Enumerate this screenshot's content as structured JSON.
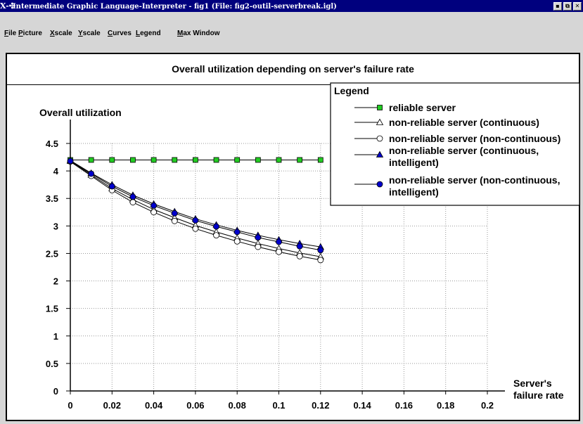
{
  "window": {
    "logo": "X-✣",
    "title": "Intermediate Graphic Language-Interpreter - fig1 (File: fig2-outil-serverbreak.igl)",
    "buttons": [
      "▪",
      "⧉",
      "✕"
    ]
  },
  "menu": [
    "File",
    "Picture",
    "Xscale",
    "Yscale",
    "Curves",
    "Legend",
    "Max Window"
  ],
  "chart_data": {
    "type": "line",
    "title": "Overall utilization depending on server's failure rate",
    "ylabel": "Overall utilization",
    "xlabel": [
      "Server's",
      "failure rate"
    ],
    "xlim": [
      0,
      0.2
    ],
    "ylim": [
      0,
      4.5
    ],
    "xticks": [
      "0",
      "0.02",
      "0.04",
      "0.06",
      "0.08",
      "0.1",
      "0.12",
      "0.14",
      "0.16",
      "0.18",
      "0.2"
    ],
    "yticks": [
      "0",
      "0.5",
      "1",
      "1.5",
      "2",
      "2.5",
      "3",
      "3.5",
      "4",
      "4.5"
    ],
    "grid": true,
    "legend_title": "Legend",
    "legend_position": "top-right",
    "x": [
      0,
      0.01,
      0.02,
      0.03,
      0.04,
      0.05,
      0.06,
      0.07,
      0.08,
      0.09,
      0.1,
      0.11,
      0.12
    ],
    "series": [
      {
        "name": "reliable server",
        "marker": "square",
        "color": "#22cc22",
        "values": [
          4.2,
          4.2,
          4.2,
          4.2,
          4.2,
          4.2,
          4.2,
          4.2,
          4.2,
          4.2,
          4.2,
          4.2,
          4.2
        ]
      },
      {
        "name": "non-reliable server (continuous)",
        "marker": "triangle-open",
        "color": "#ffffff",
        "values": [
          4.18,
          3.93,
          3.68,
          3.48,
          3.3,
          3.15,
          3.01,
          2.89,
          2.78,
          2.68,
          2.59,
          2.51,
          2.44
        ]
      },
      {
        "name": "non-reliable server (non-continuous)",
        "marker": "circle-open",
        "color": "#ffffff",
        "values": [
          4.17,
          3.91,
          3.65,
          3.43,
          3.25,
          3.09,
          2.95,
          2.83,
          2.72,
          2.62,
          2.53,
          2.45,
          2.38
        ]
      },
      {
        "name": "non-reliable server (continuous, intelligent)",
        "marker": "triangle-filled",
        "color": "#0000cc",
        "values": [
          4.19,
          3.96,
          3.75,
          3.56,
          3.4,
          3.26,
          3.13,
          3.02,
          2.92,
          2.83,
          2.75,
          2.68,
          2.62
        ]
      },
      {
        "name": "non-reliable server (non-continuous, intelligent)",
        "marker": "circle-filled",
        "color": "#0000cc",
        "values": [
          4.18,
          3.95,
          3.72,
          3.53,
          3.37,
          3.23,
          3.1,
          2.99,
          2.89,
          2.79,
          2.71,
          2.63,
          2.56
        ]
      }
    ]
  }
}
